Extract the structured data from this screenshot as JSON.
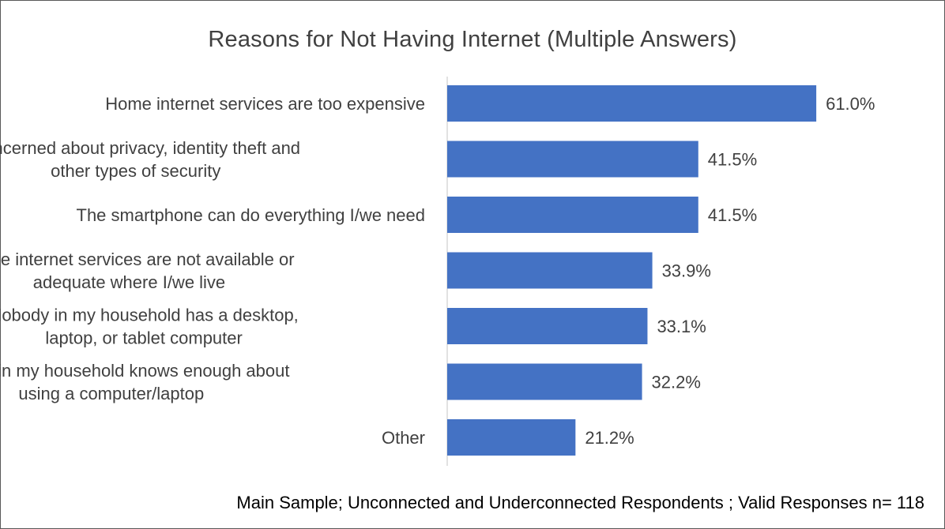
{
  "chart_data": {
    "type": "bar",
    "orientation": "horizontal",
    "title": "Reasons for Not Having Internet (Multiple Answers)",
    "categories": [
      [
        "Home internet services are too expensive"
      ],
      [
        "Concerned about privacy, identity theft and",
        "other types of security"
      ],
      [
        "The smartphone can do everything I/we need"
      ],
      [
        "Home internet services are not available or",
        "adequate where I/we live"
      ],
      [
        "Nobody in my household has a desktop,",
        "laptop, or tablet computer"
      ],
      [
        "Nobody in my household knows enough about",
        "using a computer/laptop"
      ],
      [
        "Other"
      ]
    ],
    "values": [
      61.0,
      41.5,
      41.5,
      33.9,
      33.1,
      32.2,
      21.2
    ],
    "data_labels": [
      "61.0%",
      "41.5%",
      "41.5%",
      "33.9%",
      "33.1%",
      "32.2%",
      "21.2%"
    ],
    "xlim": [
      0,
      70
    ],
    "grid": false,
    "legend": "none",
    "bar_color": "#4472C4",
    "note": "Main Sample; Unconnected and Underconnected Respondents ; Valid Responses n= 118"
  }
}
